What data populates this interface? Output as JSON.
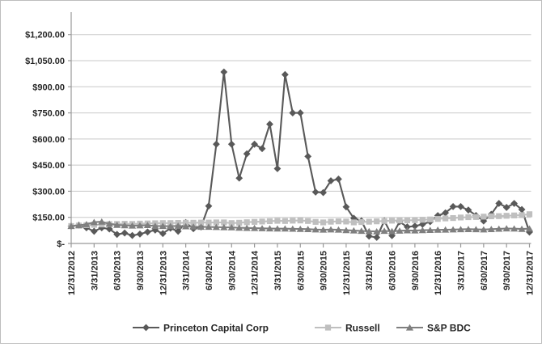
{
  "chart_data": {
    "type": "line",
    "title": "",
    "grid": "horizontal",
    "legend_position": "bottom",
    "y_axis": {
      "min": 0,
      "max": 1200,
      "step": 150,
      "tick_labels": [
        "$-",
        "$150.00",
        "$300.00",
        "$450.00",
        "$600.00",
        "$750.00",
        "$900.00",
        "$1,050.00",
        "$1,200.00"
      ]
    },
    "x_axis": {
      "tick_labels": [
        "12/31/2012",
        "3/31/2013",
        "6/30/2013",
        "9/30/2013",
        "12/31/2013",
        "3/31/2014",
        "6/30/2014",
        "9/30/2014",
        "12/31/2014",
        "3/31/2015",
        "6/30/2015",
        "9/30/2015",
        "12/31/2015",
        "3/31/2016",
        "6/30/2016",
        "9/30/2016",
        "12/31/2016",
        "3/31/2017",
        "6/30/2017",
        "9/30/2017",
        "12/31/2017"
      ],
      "points_per_tick_interval": 3,
      "frequency": "monthly"
    },
    "series": [
      {
        "name": "Princeton Capital Corp",
        "marker": "diamond",
        "color": "#595959",
        "values": [
          100,
          105,
          90,
          70,
          90,
          83,
          52,
          60,
          46,
          54,
          66,
          77,
          57,
          88,
          70,
          120,
          85,
          95,
          215,
          570,
          985,
          570,
          375,
          515,
          570,
          545,
          685,
          430,
          970,
          750,
          750,
          500,
          295,
          292,
          360,
          370,
          210,
          145,
          130,
          42,
          35,
          130,
          45,
          125,
          95,
          100,
          110,
          125,
          160,
          176,
          212,
          212,
          192,
          161,
          129,
          168,
          230,
          207,
          230,
          195,
          65
        ]
      },
      {
        "name": "Russell",
        "marker": "square",
        "color": "#bfbfbf",
        "values": [
          100,
          103,
          105,
          107,
          109,
          111,
          112,
          113,
          112,
          114,
          115,
          116,
          117,
          117,
          118,
          119,
          119,
          120,
          120,
          121,
          121,
          117,
          119,
          122,
          124,
          126,
          128,
          130,
          129,
          131,
          132,
          129,
          124,
          121,
          125,
          127,
          126,
          121,
          123,
          125,
          127,
          129,
          131,
          132,
          133,
          134,
          136,
          138,
          141,
          144,
          146,
          149,
          151,
          152,
          154,
          156,
          157,
          159,
          161,
          163,
          168
        ]
      },
      {
        "name": "S&P BDC",
        "marker": "triangle",
        "color": "#7f7f7f",
        "values": [
          100,
          104,
          110,
          122,
          125,
          113,
          106,
          104,
          102,
          103,
          105,
          100,
          100,
          99,
          101,
          98,
          96,
          95,
          95,
          94,
          93,
          92,
          90,
          89,
          88,
          87,
          86,
          85,
          85,
          84,
          83,
          82,
          80,
          79,
          80,
          79,
          76,
          74,
          72,
          70,
          69,
          72,
          70,
          73,
          75,
          74,
          76,
          77,
          78,
          79,
          80,
          81,
          82,
          81,
          80,
          82,
          84,
          86,
          85,
          83,
          85
        ]
      }
    ],
    "colors": {
      "gridline": "#c8c8c8",
      "axis": "#999999",
      "tick_text": "#262626",
      "frame_border": "#bdbdbd"
    }
  }
}
